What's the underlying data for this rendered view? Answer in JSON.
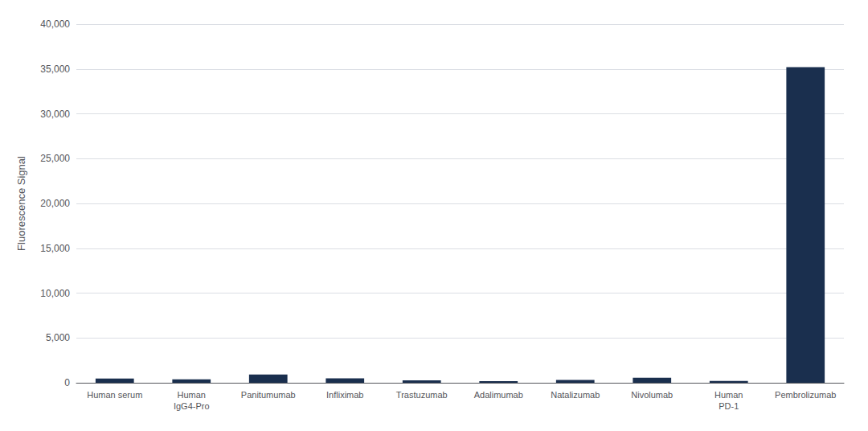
{
  "chart_data": {
    "type": "bar",
    "categories": [
      "Human serum",
      "Human\nIgG4-Pro",
      "Panitumumab",
      "Infliximab",
      "Trastuzumab",
      "Adalimumab",
      "Natalizumab",
      "Nivolumab",
      "Human\nPD-1",
      "Pembrolizumab"
    ],
    "values": [
      480,
      380,
      920,
      500,
      280,
      180,
      320,
      550,
      200,
      35200
    ],
    "color": "#1a2f4e",
    "ylabel": "Fluorescence Signal",
    "ylim": [
      0,
      40000
    ],
    "yticks": [
      0,
      {
        "value": 5000,
        "label": "5,000"
      },
      {
        "value": 10000,
        "label": "10,000"
      },
      {
        "value": 15000,
        "label": "15,000"
      },
      {
        "value": 20000,
        "label": "20,000"
      },
      {
        "value": 25000,
        "label": "25,000"
      },
      {
        "value": 30000,
        "label": "30,000"
      },
      {
        "value": 35000,
        "label": "35,000"
      },
      {
        "value": 40000,
        "label": "40,000"
      }
    ],
    "grid": true
  }
}
